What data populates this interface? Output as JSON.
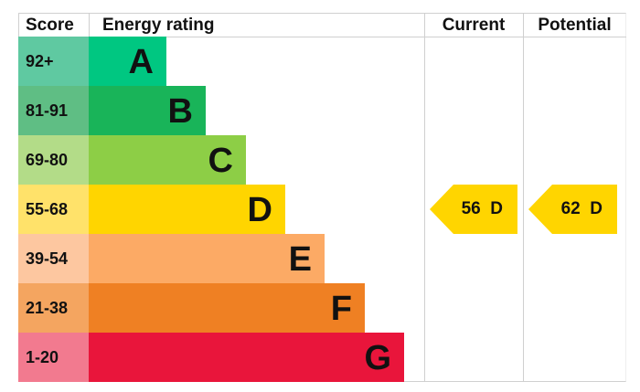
{
  "header": {
    "score": "Score",
    "rating": "Energy rating",
    "current": "Current",
    "potential": "Potential"
  },
  "chart_data": {
    "type": "bar",
    "categories": [
      "A",
      "B",
      "C",
      "D",
      "E",
      "F",
      "G"
    ],
    "score_ranges": [
      "92+",
      "81-91",
      "69-80",
      "55-68",
      "39-54",
      "21-38",
      "1-20"
    ],
    "colors": [
      "#00c781",
      "#19b459",
      "#8dce46",
      "#ffd500",
      "#fcaa65",
      "#ef8023",
      "#e9153b"
    ],
    "score_colors": [
      "#5fc9a1",
      "#5fbe84",
      "#b3dc88",
      "#ffe26a",
      "#fdc7a0",
      "#f4a560",
      "#f27a8f"
    ],
    "current": {
      "value": 56,
      "band": "D",
      "label": "56  D"
    },
    "potential": {
      "value": 62,
      "band": "D",
      "label": "62  D"
    }
  }
}
